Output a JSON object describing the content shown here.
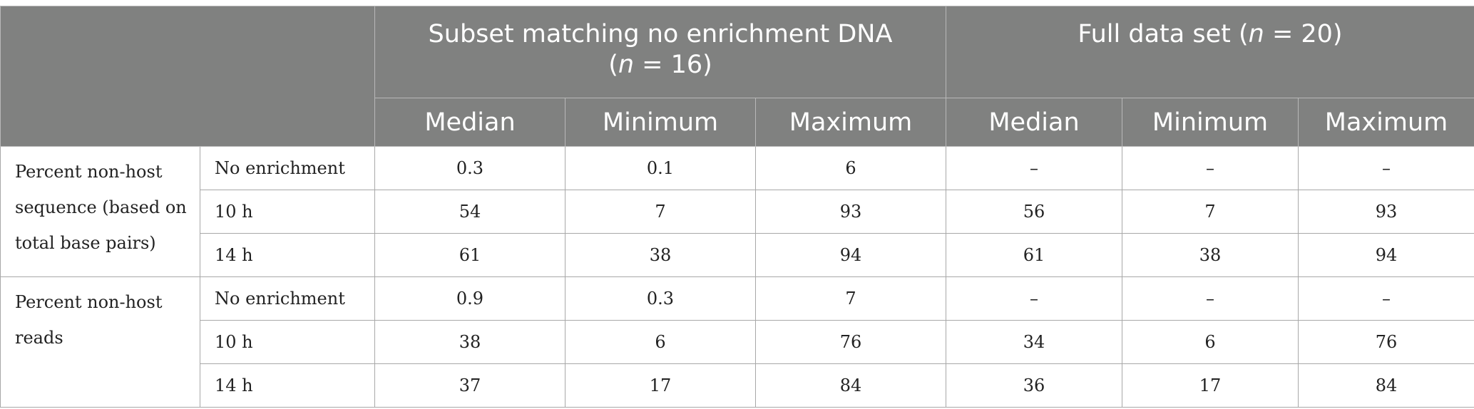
{
  "header": {
    "subset_title_line1": "Subset matching no enrichment DNA",
    "subset_n_open": "(",
    "subset_n_var": "n",
    "subset_n_rest": " = 16)",
    "full_title_prefix": "Full data set (",
    "full_n_var": "n",
    "full_n_rest": " = 20)",
    "stats": [
      "Median",
      "Minimum",
      "Maximum",
      "Median",
      "Minimum",
      "Maximum"
    ]
  },
  "groups": [
    {
      "metric": "Percent non-host sequence (based on total base pairs)",
      "rows": [
        {
          "condition": "No enrichment",
          "values": [
            "0.3",
            "0.1",
            "6",
            "–",
            "–",
            "–"
          ]
        },
        {
          "condition": "10 h",
          "values": [
            "54",
            "7",
            "93",
            "56",
            "7",
            "93"
          ]
        },
        {
          "condition": "14 h",
          "values": [
            "61",
            "38",
            "94",
            "61",
            "38",
            "94"
          ]
        }
      ]
    },
    {
      "metric": "Percent non-host reads",
      "rows": [
        {
          "condition": "No enrichment",
          "values": [
            "0.9",
            "0.3",
            "7",
            "–",
            "–",
            "–"
          ]
        },
        {
          "condition": "10 h",
          "values": [
            "38",
            "6",
            "76",
            "34",
            "6",
            "76"
          ]
        },
        {
          "condition": "14 h",
          "values": [
            "37",
            "17",
            "84",
            "36",
            "17",
            "84"
          ]
        }
      ]
    }
  ],
  "colors": {
    "header_background": "#808180",
    "header_text": "#ffffff",
    "border": "#a8a8a8",
    "body_text": "#222222"
  }
}
